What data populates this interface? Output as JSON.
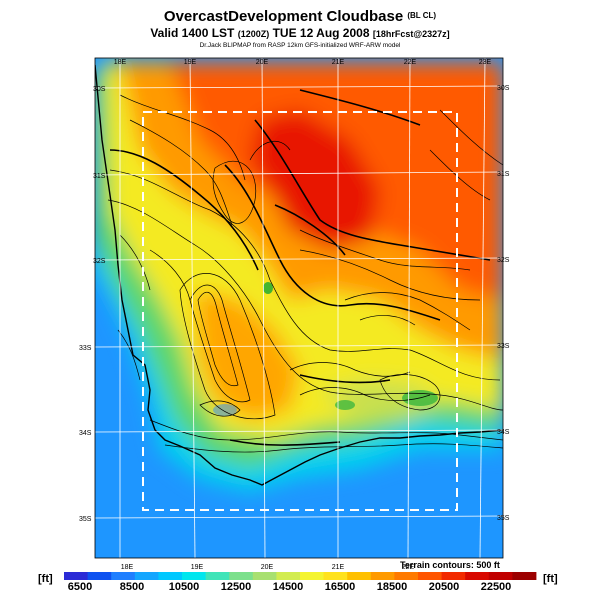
{
  "title": {
    "main": "OvercastDevelopment Cloudbase",
    "main_tag": "(BL CL)",
    "valid_line": "Valid 1400 LST",
    "valid_code": "(1200Z)",
    "valid_date": "TUE 12 Aug 2008",
    "forecast_tag": "[18hrFcst@2327z]",
    "credit": "Dr.Jack BLIPMAP from RASP 12km GFS-initialized WRF-ARW model"
  },
  "lon_labels_top": [
    "18E",
    "19E",
    "20E",
    "21E",
    "22E",
    "23E"
  ],
  "lon_labels_bottom": [
    "18E",
    "19E",
    "20E",
    "21E",
    "22E"
  ],
  "lat_labels_left": [
    "30S",
    "31S",
    "32S",
    "33S",
    "34S",
    "35S"
  ],
  "lat_labels_right": [
    "30S",
    "31S",
    "32S",
    "33S",
    "34S",
    "35S"
  ],
  "terrain_note": "Terrain contours: 500 ft",
  "colorbar": {
    "unit_left": "[ft]",
    "unit_right": "[ft]",
    "tick_labels": [
      "6500",
      "8500",
      "10500",
      "12500",
      "14500",
      "16500",
      "18500",
      "20500",
      "22500"
    ],
    "colors": [
      "#2b2bd6",
      "#0e52f0",
      "#1f7fff",
      "#14a6ff",
      "#00c8ff",
      "#00e6ee",
      "#40e4b8",
      "#7ce08c",
      "#a8e070",
      "#d2ec50",
      "#f4f430",
      "#ffe21e",
      "#ffc000",
      "#ff9a00",
      "#ff7a00",
      "#ff5500",
      "#f22a00",
      "#d80800",
      "#c00000",
      "#9c0000"
    ]
  },
  "colors": {
    "ocean_blue": "#1e96ff",
    "coast_cyan": "#00d2ee",
    "green": "#40c040",
    "yellow": "#f4ea20",
    "orange": "#ff9a00",
    "red": "#e81800"
  }
}
